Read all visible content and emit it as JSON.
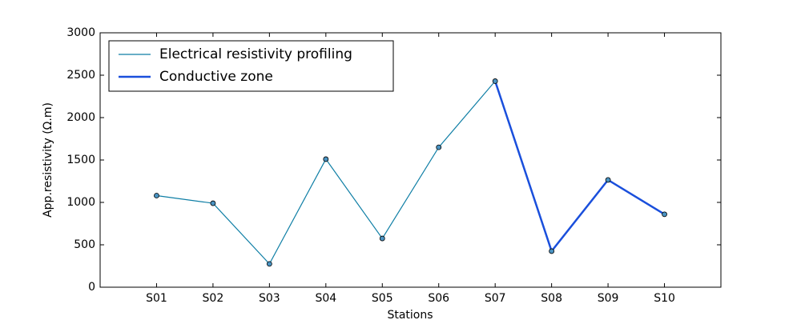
{
  "chart_data": {
    "type": "line",
    "xlabel": "Stations",
    "ylabel": "App.resistivity (Ω.m)",
    "categories": [
      "S01",
      "S02",
      "S03",
      "S04",
      "S05",
      "S06",
      "S07",
      "S08",
      "S09",
      "S10"
    ],
    "series": [
      {
        "name": "Electrical resistivity profiling",
        "color": "#0e7ea5",
        "values": [
          1080,
          990,
          275,
          1510,
          575,
          1650,
          2430,
          425,
          1265,
          860
        ]
      },
      {
        "name": "Conductive zone",
        "color": "#1a4fdc",
        "values": [
          null,
          null,
          null,
          null,
          null,
          null,
          2430,
          425,
          1265,
          860
        ]
      }
    ],
    "ylim": [
      0,
      3000
    ],
    "yticks": [
      0,
      500,
      1000,
      1500,
      2000,
      2500,
      3000
    ],
    "legend": "upper left",
    "grid": false
  }
}
